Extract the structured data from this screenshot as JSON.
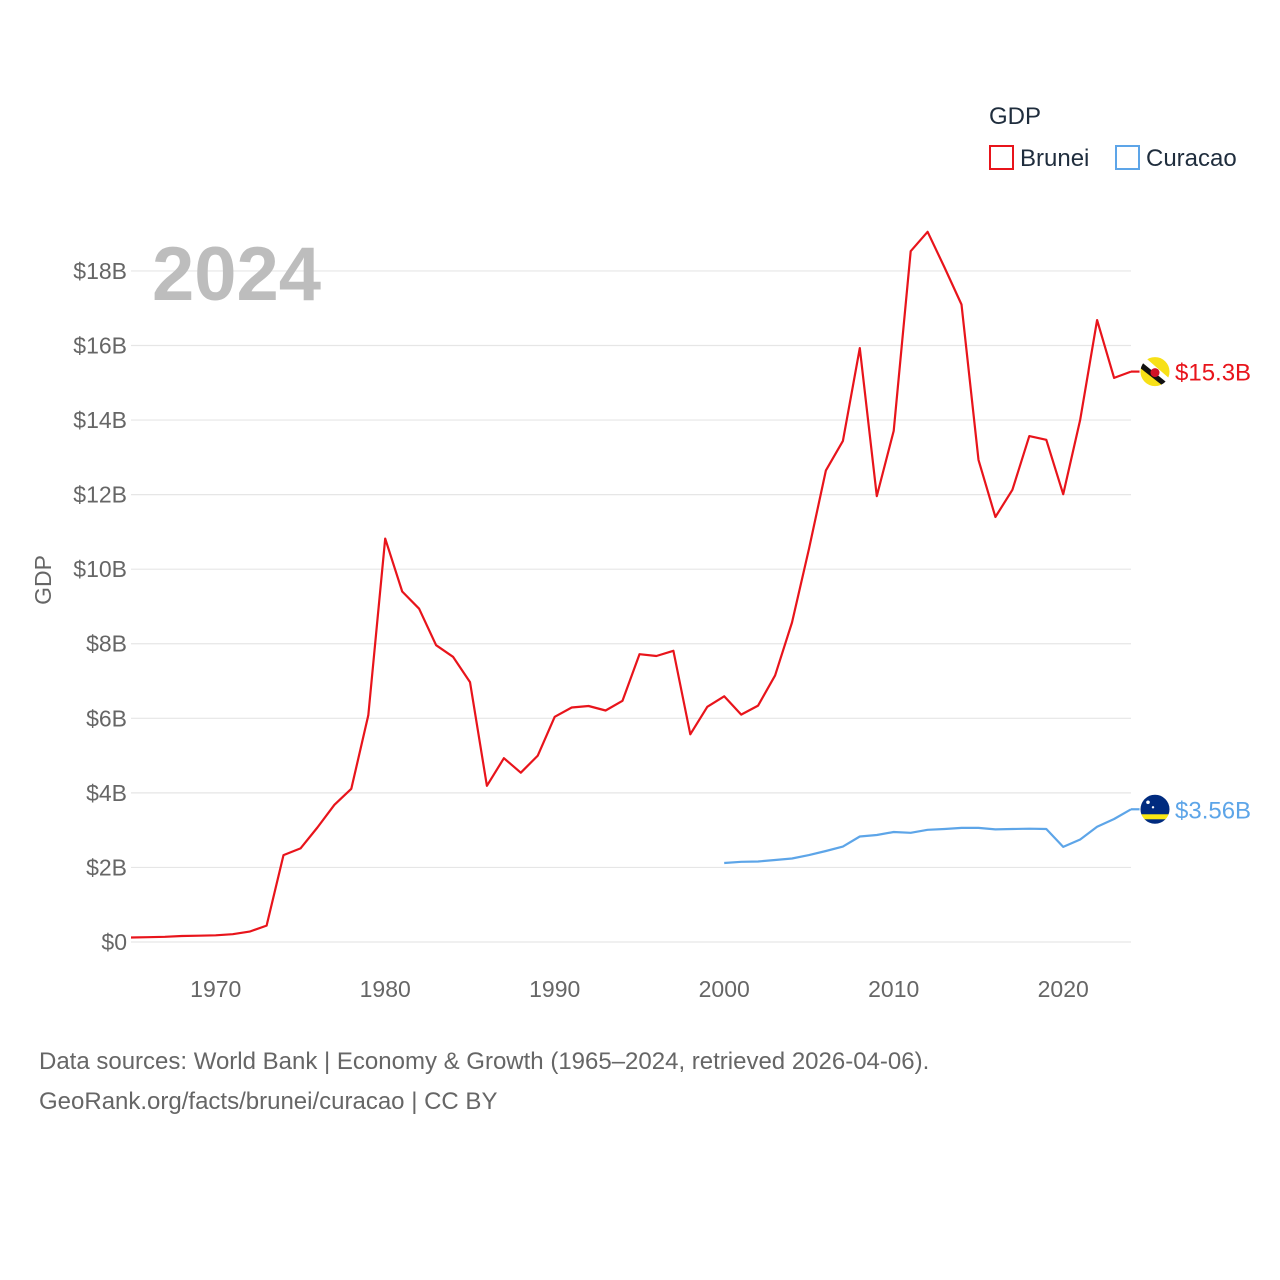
{
  "chart_data": {
    "type": "line",
    "highlight_year_label": "2024",
    "ylabel": "GDP",
    "legend": {
      "title": "GDP",
      "placement": "top-right"
    },
    "ylim": [
      0,
      19500000000
    ],
    "xlim": [
      1965,
      2024
    ],
    "y_ticks": [
      {
        "value": 0,
        "label": "$0"
      },
      {
        "value": 2000000000,
        "label": "$2B"
      },
      {
        "value": 4000000000,
        "label": "$4B"
      },
      {
        "value": 6000000000,
        "label": "$6B"
      },
      {
        "value": 8000000000,
        "label": "$8B"
      },
      {
        "value": 10000000000,
        "label": "$10B"
      },
      {
        "value": 12000000000,
        "label": "$12B"
      },
      {
        "value": 14000000000,
        "label": "$14B"
      },
      {
        "value": 16000000000,
        "label": "$16B"
      },
      {
        "value": 18000000000,
        "label": "$18B"
      }
    ],
    "x_ticks": [
      {
        "value": 1970,
        "label": "1970"
      },
      {
        "value": 1980,
        "label": "1980"
      },
      {
        "value": 1990,
        "label": "1990"
      },
      {
        "value": 2000,
        "label": "2000"
      },
      {
        "value": 2010,
        "label": "2010"
      },
      {
        "value": 2020,
        "label": "2020"
      }
    ],
    "series": [
      {
        "name": "Brunei",
        "color": "#e8141b",
        "end_label": "$15.3B",
        "flag": "brunei-flag",
        "x": [
          1965,
          1966,
          1967,
          1968,
          1969,
          1970,
          1971,
          1972,
          1973,
          1974,
          1975,
          1976,
          1977,
          1978,
          1979,
          1980,
          1981,
          1982,
          1983,
          1984,
          1985,
          1986,
          1987,
          1988,
          1989,
          1990,
          1991,
          1992,
          1993,
          1994,
          1995,
          1996,
          1997,
          1998,
          1999,
          2000,
          2001,
          2002,
          2003,
          2004,
          2005,
          2006,
          2007,
          2008,
          2009,
          2010,
          2011,
          2012,
          2013,
          2014,
          2015,
          2016,
          2017,
          2018,
          2019,
          2020,
          2021,
          2022,
          2023,
          2024
        ],
        "values": [
          0.12,
          0.13,
          0.14,
          0.16,
          0.17,
          0.18,
          0.21,
          0.28,
          0.44,
          2.33,
          2.51,
          3.07,
          3.68,
          4.11,
          6.08,
          10.82,
          9.4,
          8.94,
          7.96,
          7.65,
          6.97,
          4.19,
          4.93,
          4.54,
          5.0,
          6.04,
          6.29,
          6.33,
          6.21,
          6.47,
          7.72,
          7.67,
          7.81,
          5.57,
          6.31,
          6.59,
          6.1,
          6.34,
          7.15,
          8.57,
          10.55,
          12.65,
          13.44,
          15.93,
          11.96,
          13.71,
          18.53,
          19.05,
          18.09,
          17.1,
          12.93,
          11.4,
          12.13,
          13.57,
          13.47,
          12.01,
          14.01,
          16.68,
          15.13,
          15.3
        ],
        "value_unit": "billion USD"
      },
      {
        "name": "Curacao",
        "color": "#5da5e8",
        "end_label": "$3.56B",
        "flag": "curacao-flag",
        "x": [
          2000,
          2001,
          2002,
          2003,
          2004,
          2005,
          2006,
          2007,
          2008,
          2009,
          2010,
          2011,
          2012,
          2013,
          2014,
          2015,
          2016,
          2017,
          2018,
          2019,
          2020,
          2021,
          2022,
          2023,
          2024
        ],
        "values": [
          2.12,
          2.15,
          2.16,
          2.2,
          2.24,
          2.33,
          2.44,
          2.56,
          2.83,
          2.87,
          2.95,
          2.93,
          3.01,
          3.03,
          3.06,
          3.06,
          3.02,
          3.03,
          3.04,
          3.03,
          2.55,
          2.75,
          3.09,
          3.3,
          3.56
        ],
        "value_unit": "billion USD"
      }
    ]
  },
  "footer": {
    "line1": "Data sources: World Bank | Economy & Growth (1965–2024, retrieved 2026-04-06).",
    "line2": "GeoRank.org/facts/brunei/curacao | CC BY"
  }
}
